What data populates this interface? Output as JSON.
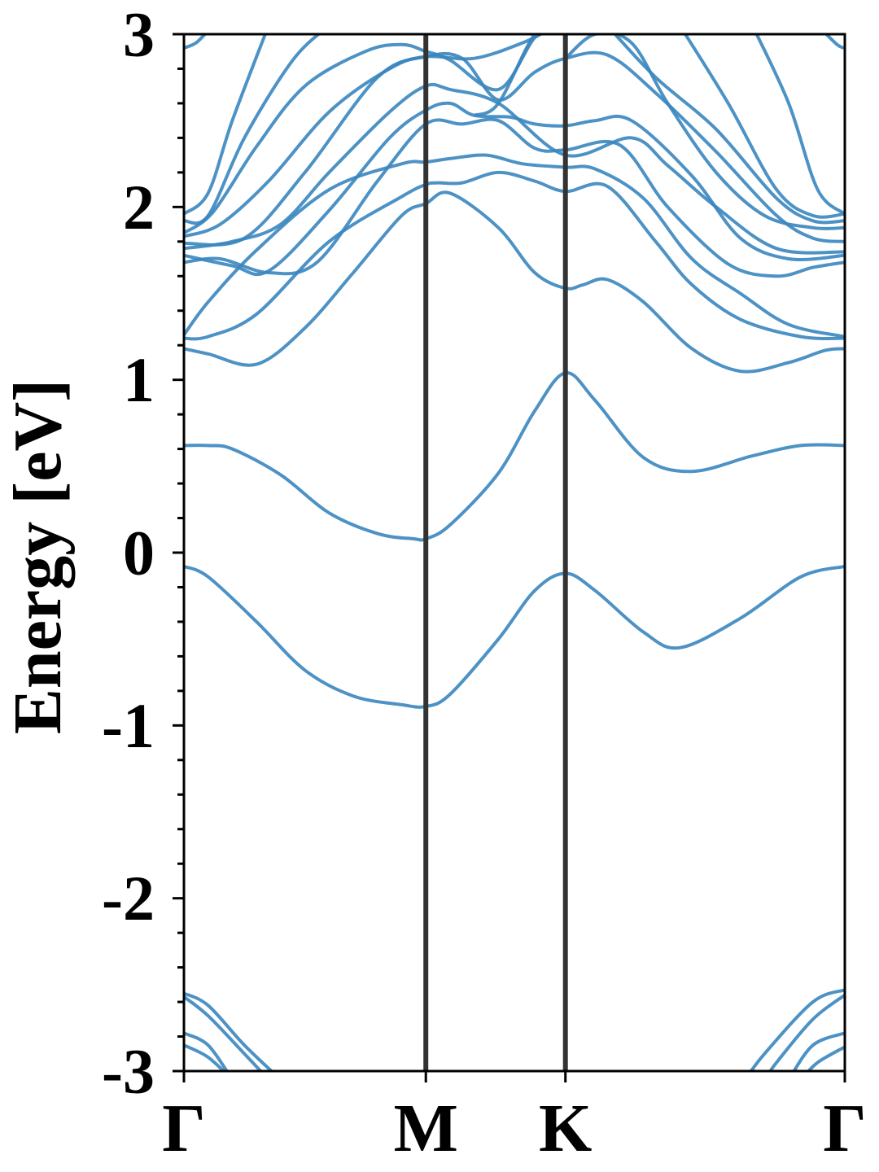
{
  "chart_data": {
    "type": "line",
    "title": "",
    "xlabel": "",
    "ylabel": "Energy [eV]",
    "ylim": [
      -3,
      3
    ],
    "yticks": [
      -3,
      -2,
      -1,
      0,
      1,
      2,
      3
    ],
    "ytick_labels": [
      "-3",
      "-2",
      "-1",
      "0",
      "1",
      "2",
      "3"
    ],
    "ytick_minor_step": 0.2,
    "k_path": [
      {
        "label": "Γ",
        "k": 0.0
      },
      {
        "label": "M",
        "k": 1.0
      },
      {
        "label": "K",
        "k": 1.577
      },
      {
        "label": "Γ",
        "k": 2.732
      }
    ],
    "k_boundaries": [
      1.0,
      1.577
    ],
    "grid": false,
    "legend": "none",
    "colors": {
      "bands": "#3a86bf",
      "boundaries": "#333333",
      "axes": "#000000"
    },
    "series": [
      {
        "points": [
          [
            0,
            -0.08
          ],
          [
            0.1,
            -0.14
          ],
          [
            0.3,
            -0.4
          ],
          [
            0.5,
            -0.68
          ],
          [
            0.7,
            -0.83
          ],
          [
            0.9,
            -0.88
          ],
          [
            1.0,
            -0.89
          ],
          [
            1.1,
            -0.82
          ],
          [
            1.3,
            -0.5
          ],
          [
            1.45,
            -0.22
          ],
          [
            1.577,
            -0.12
          ],
          [
            1.7,
            -0.22
          ],
          [
            1.9,
            -0.46
          ],
          [
            2.05,
            -0.55
          ],
          [
            2.3,
            -0.38
          ],
          [
            2.55,
            -0.14
          ],
          [
            2.732,
            -0.08
          ]
        ]
      },
      {
        "points": [
          [
            0,
            0.62
          ],
          [
            0.1,
            0.62
          ],
          [
            0.2,
            0.6
          ],
          [
            0.4,
            0.45
          ],
          [
            0.6,
            0.23
          ],
          [
            0.8,
            0.11
          ],
          [
            0.95,
            0.08
          ],
          [
            1.0,
            0.08
          ],
          [
            1.1,
            0.16
          ],
          [
            1.3,
            0.46
          ],
          [
            1.45,
            0.82
          ],
          [
            1.577,
            1.04
          ],
          [
            1.7,
            0.88
          ],
          [
            1.9,
            0.55
          ],
          [
            2.1,
            0.47
          ],
          [
            2.35,
            0.56
          ],
          [
            2.55,
            0.62
          ],
          [
            2.732,
            0.62
          ]
        ]
      },
      {
        "points": [
          [
            0,
            1.18
          ],
          [
            0.1,
            1.15
          ],
          [
            0.3,
            1.09
          ],
          [
            0.5,
            1.3
          ],
          [
            0.7,
            1.62
          ],
          [
            0.9,
            1.95
          ],
          [
            1.0,
            2.02
          ],
          [
            1.1,
            2.08
          ],
          [
            1.3,
            1.88
          ],
          [
            1.45,
            1.62
          ],
          [
            1.577,
            1.53
          ],
          [
            1.65,
            1.55
          ],
          [
            1.75,
            1.58
          ],
          [
            1.9,
            1.45
          ],
          [
            2.1,
            1.18
          ],
          [
            2.3,
            1.05
          ],
          [
            2.5,
            1.1
          ],
          [
            2.65,
            1.17
          ],
          [
            2.732,
            1.18
          ]
        ]
      },
      {
        "points": [
          [
            0,
            1.24
          ],
          [
            0.1,
            1.25
          ],
          [
            0.3,
            1.38
          ],
          [
            0.6,
            1.8
          ],
          [
            0.9,
            2.06
          ],
          [
            1.0,
            2.13
          ],
          [
            1.05,
            2.14
          ],
          [
            1.15,
            2.14
          ],
          [
            1.3,
            2.2
          ],
          [
            1.45,
            2.15
          ],
          [
            1.577,
            2.09
          ],
          [
            1.75,
            2.12
          ],
          [
            1.95,
            1.8
          ],
          [
            2.1,
            1.55
          ],
          [
            2.3,
            1.35
          ],
          [
            2.55,
            1.25
          ],
          [
            2.732,
            1.24
          ]
        ]
      },
      {
        "points": [
          [
            0,
            1.26
          ],
          [
            0.1,
            1.45
          ],
          [
            0.3,
            1.75
          ],
          [
            0.6,
            2.1
          ],
          [
            0.9,
            2.25
          ],
          [
            1.0,
            2.26
          ],
          [
            1.1,
            2.28
          ],
          [
            1.25,
            2.3
          ],
          [
            1.4,
            2.25
          ],
          [
            1.577,
            2.23
          ],
          [
            1.7,
            2.22
          ],
          [
            1.9,
            2.05
          ],
          [
            2.1,
            1.7
          ],
          [
            2.3,
            1.5
          ],
          [
            2.5,
            1.32
          ],
          [
            2.732,
            1.25
          ]
        ]
      },
      {
        "points": [
          [
            0,
            1.68
          ],
          [
            0.15,
            1.7
          ],
          [
            0.35,
            1.62
          ],
          [
            0.55,
            1.68
          ],
          [
            0.8,
            2.15
          ],
          [
            1.0,
            2.48
          ],
          [
            1.15,
            2.48
          ],
          [
            1.3,
            2.5
          ],
          [
            1.45,
            2.34
          ],
          [
            1.577,
            2.33
          ],
          [
            1.8,
            2.36
          ],
          [
            2.0,
            2.0
          ],
          [
            2.25,
            1.67
          ],
          [
            2.45,
            1.6
          ],
          [
            2.6,
            1.65
          ],
          [
            2.732,
            1.68
          ]
        ]
      },
      {
        "points": [
          [
            0,
            1.72
          ],
          [
            0.2,
            1.66
          ],
          [
            0.35,
            1.63
          ],
          [
            0.6,
            1.98
          ],
          [
            0.85,
            2.4
          ],
          [
            1.0,
            2.56
          ],
          [
            1.1,
            2.6
          ],
          [
            1.2,
            2.53
          ],
          [
            1.35,
            2.52
          ],
          [
            1.45,
            2.48
          ],
          [
            1.577,
            2.47
          ],
          [
            1.7,
            2.5
          ],
          [
            1.85,
            2.5
          ],
          [
            2.1,
            2.18
          ],
          [
            2.3,
            1.82
          ],
          [
            2.5,
            1.7
          ],
          [
            2.732,
            1.72
          ]
        ]
      },
      {
        "points": [
          [
            0,
            1.76
          ],
          [
            0.2,
            1.8
          ],
          [
            0.4,
            1.9
          ],
          [
            0.6,
            2.2
          ],
          [
            0.85,
            2.55
          ],
          [
            1.0,
            2.7
          ],
          [
            1.1,
            2.68
          ],
          [
            1.3,
            2.6
          ],
          [
            1.577,
            2.3
          ],
          [
            1.85,
            2.4
          ],
          [
            2.0,
            2.24
          ],
          [
            2.2,
            2.0
          ],
          [
            2.45,
            1.76
          ],
          [
            2.732,
            1.74
          ]
        ]
      },
      {
        "points": [
          [
            0,
            1.79
          ],
          [
            0.25,
            1.82
          ],
          [
            0.5,
            2.2
          ],
          [
            0.8,
            2.75
          ],
          [
            1.0,
            2.87
          ],
          [
            1.15,
            2.86
          ],
          [
            1.3,
            2.62
          ],
          [
            1.45,
            2.78
          ],
          [
            1.577,
            2.86
          ],
          [
            1.75,
            2.88
          ],
          [
            1.95,
            2.66
          ],
          [
            2.2,
            2.32
          ],
          [
            2.45,
            1.95
          ],
          [
            2.6,
            1.82
          ],
          [
            2.732,
            1.8
          ]
        ]
      },
      {
        "points": [
          [
            0,
            1.83
          ],
          [
            0.15,
            1.9
          ],
          [
            0.35,
            2.15
          ],
          [
            0.6,
            2.55
          ],
          [
            0.85,
            2.8
          ],
          [
            1.0,
            2.87
          ],
          [
            1.2,
            2.86
          ],
          [
            1.4,
            2.95
          ],
          [
            1.5,
            3.02
          ]
        ]
      },
      {
        "points": [
          [
            0,
            1.85
          ],
          [
            0.12,
            1.97
          ],
          [
            0.3,
            2.35
          ],
          [
            0.5,
            2.7
          ],
          [
            0.75,
            2.9
          ],
          [
            0.9,
            2.94
          ],
          [
            1.0,
            2.9
          ],
          [
            1.1,
            2.85
          ],
          [
            1.3,
            2.68
          ],
          [
            1.45,
            2.98
          ],
          [
            1.55,
            3.05
          ]
        ]
      },
      {
        "points": [
          [
            0,
            1.92
          ],
          [
            0.1,
            1.95
          ],
          [
            0.25,
            2.4
          ],
          [
            0.45,
            2.85
          ],
          [
            0.6,
            3.05
          ]
        ]
      },
      {
        "points": [
          [
            0,
            1.96
          ],
          [
            0.1,
            2.08
          ],
          [
            0.2,
            2.5
          ],
          [
            0.35,
            3.05
          ]
        ]
      },
      {
        "points": [
          [
            1.2,
            2.53
          ],
          [
            1.3,
            2.6
          ],
          [
            1.45,
            3.0
          ],
          [
            1.55,
            3.05
          ]
        ]
      },
      {
        "points": [
          [
            1.577,
            2.86
          ],
          [
            1.7,
            3.0
          ],
          [
            1.85,
            2.95
          ],
          [
            2.0,
            2.6
          ],
          [
            2.2,
            2.2
          ],
          [
            2.4,
            1.95
          ],
          [
            2.6,
            1.88
          ],
          [
            2.732,
            1.88
          ]
        ]
      },
      {
        "points": [
          [
            1.75,
            3.05
          ],
          [
            1.95,
            2.75
          ],
          [
            2.2,
            2.45
          ],
          [
            2.45,
            2.05
          ],
          [
            2.6,
            1.92
          ],
          [
            2.732,
            1.92
          ]
        ]
      },
      {
        "points": [
          [
            2.05,
            3.05
          ],
          [
            2.25,
            2.6
          ],
          [
            2.45,
            2.1
          ],
          [
            2.6,
            1.95
          ],
          [
            2.732,
            1.96
          ]
        ]
      },
      {
        "points": [
          [
            2.35,
            3.05
          ],
          [
            2.5,
            2.6
          ],
          [
            2.62,
            2.1
          ],
          [
            2.732,
            1.96
          ]
        ]
      },
      {
        "points": [
          [
            2.62,
            3.05
          ],
          [
            2.7,
            2.94
          ],
          [
            2.732,
            2.92
          ]
        ]
      },
      {
        "points": [
          [
            0,
            2.92
          ],
          [
            0.05,
            2.95
          ],
          [
            0.1,
            3.02
          ]
        ]
      },
      {
        "points": [
          [
            0,
            -2.55
          ],
          [
            0.1,
            -2.62
          ],
          [
            0.25,
            -2.85
          ],
          [
            0.4,
            -3.05
          ]
        ]
      },
      {
        "points": [
          [
            0,
            -2.57
          ],
          [
            0.1,
            -2.68
          ],
          [
            0.25,
            -2.9
          ],
          [
            0.35,
            -3.05
          ]
        ]
      },
      {
        "points": [
          [
            0,
            -2.78
          ],
          [
            0.1,
            -2.85
          ],
          [
            0.2,
            -3.05
          ]
        ]
      },
      {
        "points": [
          [
            0,
            -2.85
          ],
          [
            0.1,
            -2.92
          ],
          [
            0.2,
            -3.05
          ]
        ]
      },
      {
        "points": [
          [
            2.732,
            -2.53
          ],
          [
            2.6,
            -2.6
          ],
          [
            2.4,
            -2.9
          ],
          [
            2.32,
            -3.05
          ]
        ]
      },
      {
        "points": [
          [
            2.732,
            -2.56
          ],
          [
            2.6,
            -2.7
          ],
          [
            2.45,
            -2.95
          ],
          [
            2.4,
            -3.05
          ]
        ]
      },
      {
        "points": [
          [
            2.732,
            -2.78
          ],
          [
            2.6,
            -2.85
          ],
          [
            2.5,
            -3.05
          ]
        ]
      },
      {
        "points": [
          [
            2.732,
            -2.86
          ],
          [
            2.62,
            -2.95
          ],
          [
            2.55,
            -3.05
          ]
        ]
      }
    ]
  }
}
